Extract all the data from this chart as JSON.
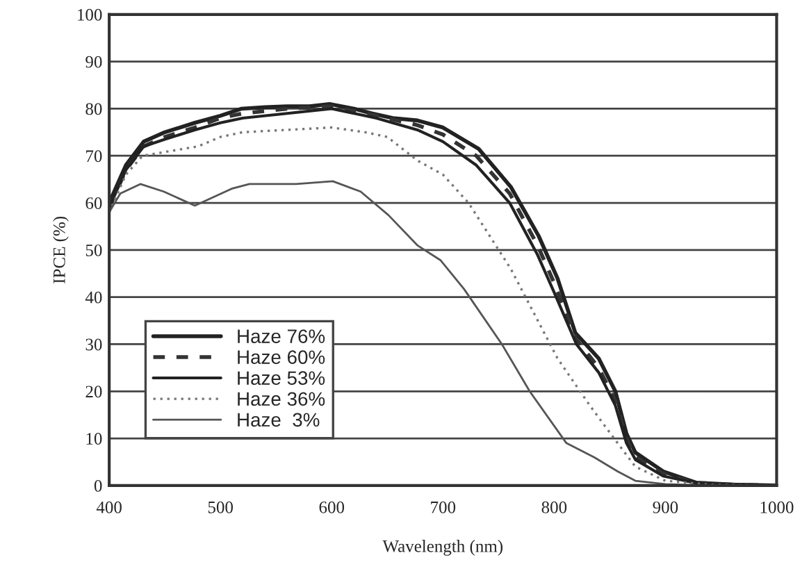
{
  "chart_data": {
    "type": "line",
    "xlabel": "Wavelength (nm)",
    "ylabel": "IPCE (%)",
    "xlim": [
      400,
      1000
    ],
    "xticks": [
      400,
      500,
      600,
      700,
      800,
      900,
      1000
    ],
    "ylim": [
      0,
      100
    ],
    "yticks": [
      0,
      10,
      20,
      30,
      40,
      50,
      60,
      70,
      80,
      90,
      100
    ],
    "grid": "y",
    "legend": "left",
    "marker": "none",
    "series": [
      {
        "name": "Haze 76%",
        "color": "#222222",
        "line_style": "solid",
        "x": [
          400,
          415,
          431,
          450,
          477,
          500,
          519,
          540,
          560,
          580,
          598,
          620,
          636,
          655,
          677,
          700,
          732,
          761,
          786,
          803,
          819,
          840,
          855,
          865,
          873,
          898,
          928,
          960,
          1000
        ],
        "values": [
          60,
          68,
          73,
          75,
          77,
          78.5,
          80,
          80.3,
          80.5,
          80.5,
          81,
          80,
          79,
          78,
          77.5,
          76,
          71.5,
          63.4,
          53,
          44,
          32.4,
          27,
          20,
          11,
          7,
          3,
          0.6,
          0.2,
          0
        ]
      },
      {
        "name": "Haze 60%",
        "color": "#333333",
        "line_style": "dashed",
        "x": [
          400,
          415,
          431,
          450,
          477,
          500,
          520,
          560,
          600,
          640,
          677,
          700,
          730,
          760,
          785,
          800,
          820,
          840,
          855,
          865,
          873,
          898,
          928,
          960,
          1000
        ],
        "values": [
          59,
          67,
          72,
          74,
          76,
          78,
          79,
          80,
          80.5,
          78.5,
          76.5,
          74.5,
          70,
          62,
          51,
          43,
          31,
          25,
          18,
          10,
          6,
          2.5,
          0.5,
          0.2,
          0
        ]
      },
      {
        "name": "Haze 53%",
        "color": "#222222",
        "line_style": "solid",
        "x": [
          400,
          415,
          431,
          450,
          477,
          500,
          520,
          560,
          600,
          640,
          677,
          700,
          730,
          760,
          785,
          800,
          820,
          840,
          855,
          865,
          873,
          898,
          928,
          960,
          1000
        ],
        "values": [
          59,
          67,
          72,
          73.5,
          75.5,
          77,
          78,
          79,
          80,
          78,
          75.5,
          73,
          68,
          60,
          49,
          41,
          30,
          24,
          17,
          9,
          5.5,
          2,
          0.5,
          0.2,
          0
        ]
      },
      {
        "name": "Haze 36%",
        "color": "#777777",
        "line_style": "dotted",
        "x": [
          400,
          415,
          430,
          455,
          480,
          500,
          520,
          560,
          600,
          630,
          650,
          677,
          700,
          723,
          761,
          803,
          832,
          857,
          873,
          900,
          940,
          1000
        ],
        "values": [
          58,
          66,
          70,
          71,
          72,
          74,
          75,
          75.5,
          76,
          75,
          74,
          69,
          66,
          60,
          46,
          27,
          17,
          9,
          4,
          1,
          0.2,
          0
        ]
      },
      {
        "name": "Haze  3%",
        "color": "#555555",
        "line_style": "solid",
        "x": [
          400,
          410,
          428,
          449,
          477,
          510,
          526,
          568,
          601,
          626,
          651,
          677,
          698,
          719,
          728,
          753,
          778,
          811,
          836,
          857,
          873,
          900,
          940,
          1000
        ],
        "values": [
          58,
          62,
          64,
          62.4,
          59.4,
          63,
          64,
          64,
          64.6,
          62.4,
          57.4,
          51,
          47.8,
          41.7,
          38.6,
          30,
          20,
          9,
          6,
          3,
          1,
          0.3,
          0,
          0
        ]
      }
    ]
  }
}
